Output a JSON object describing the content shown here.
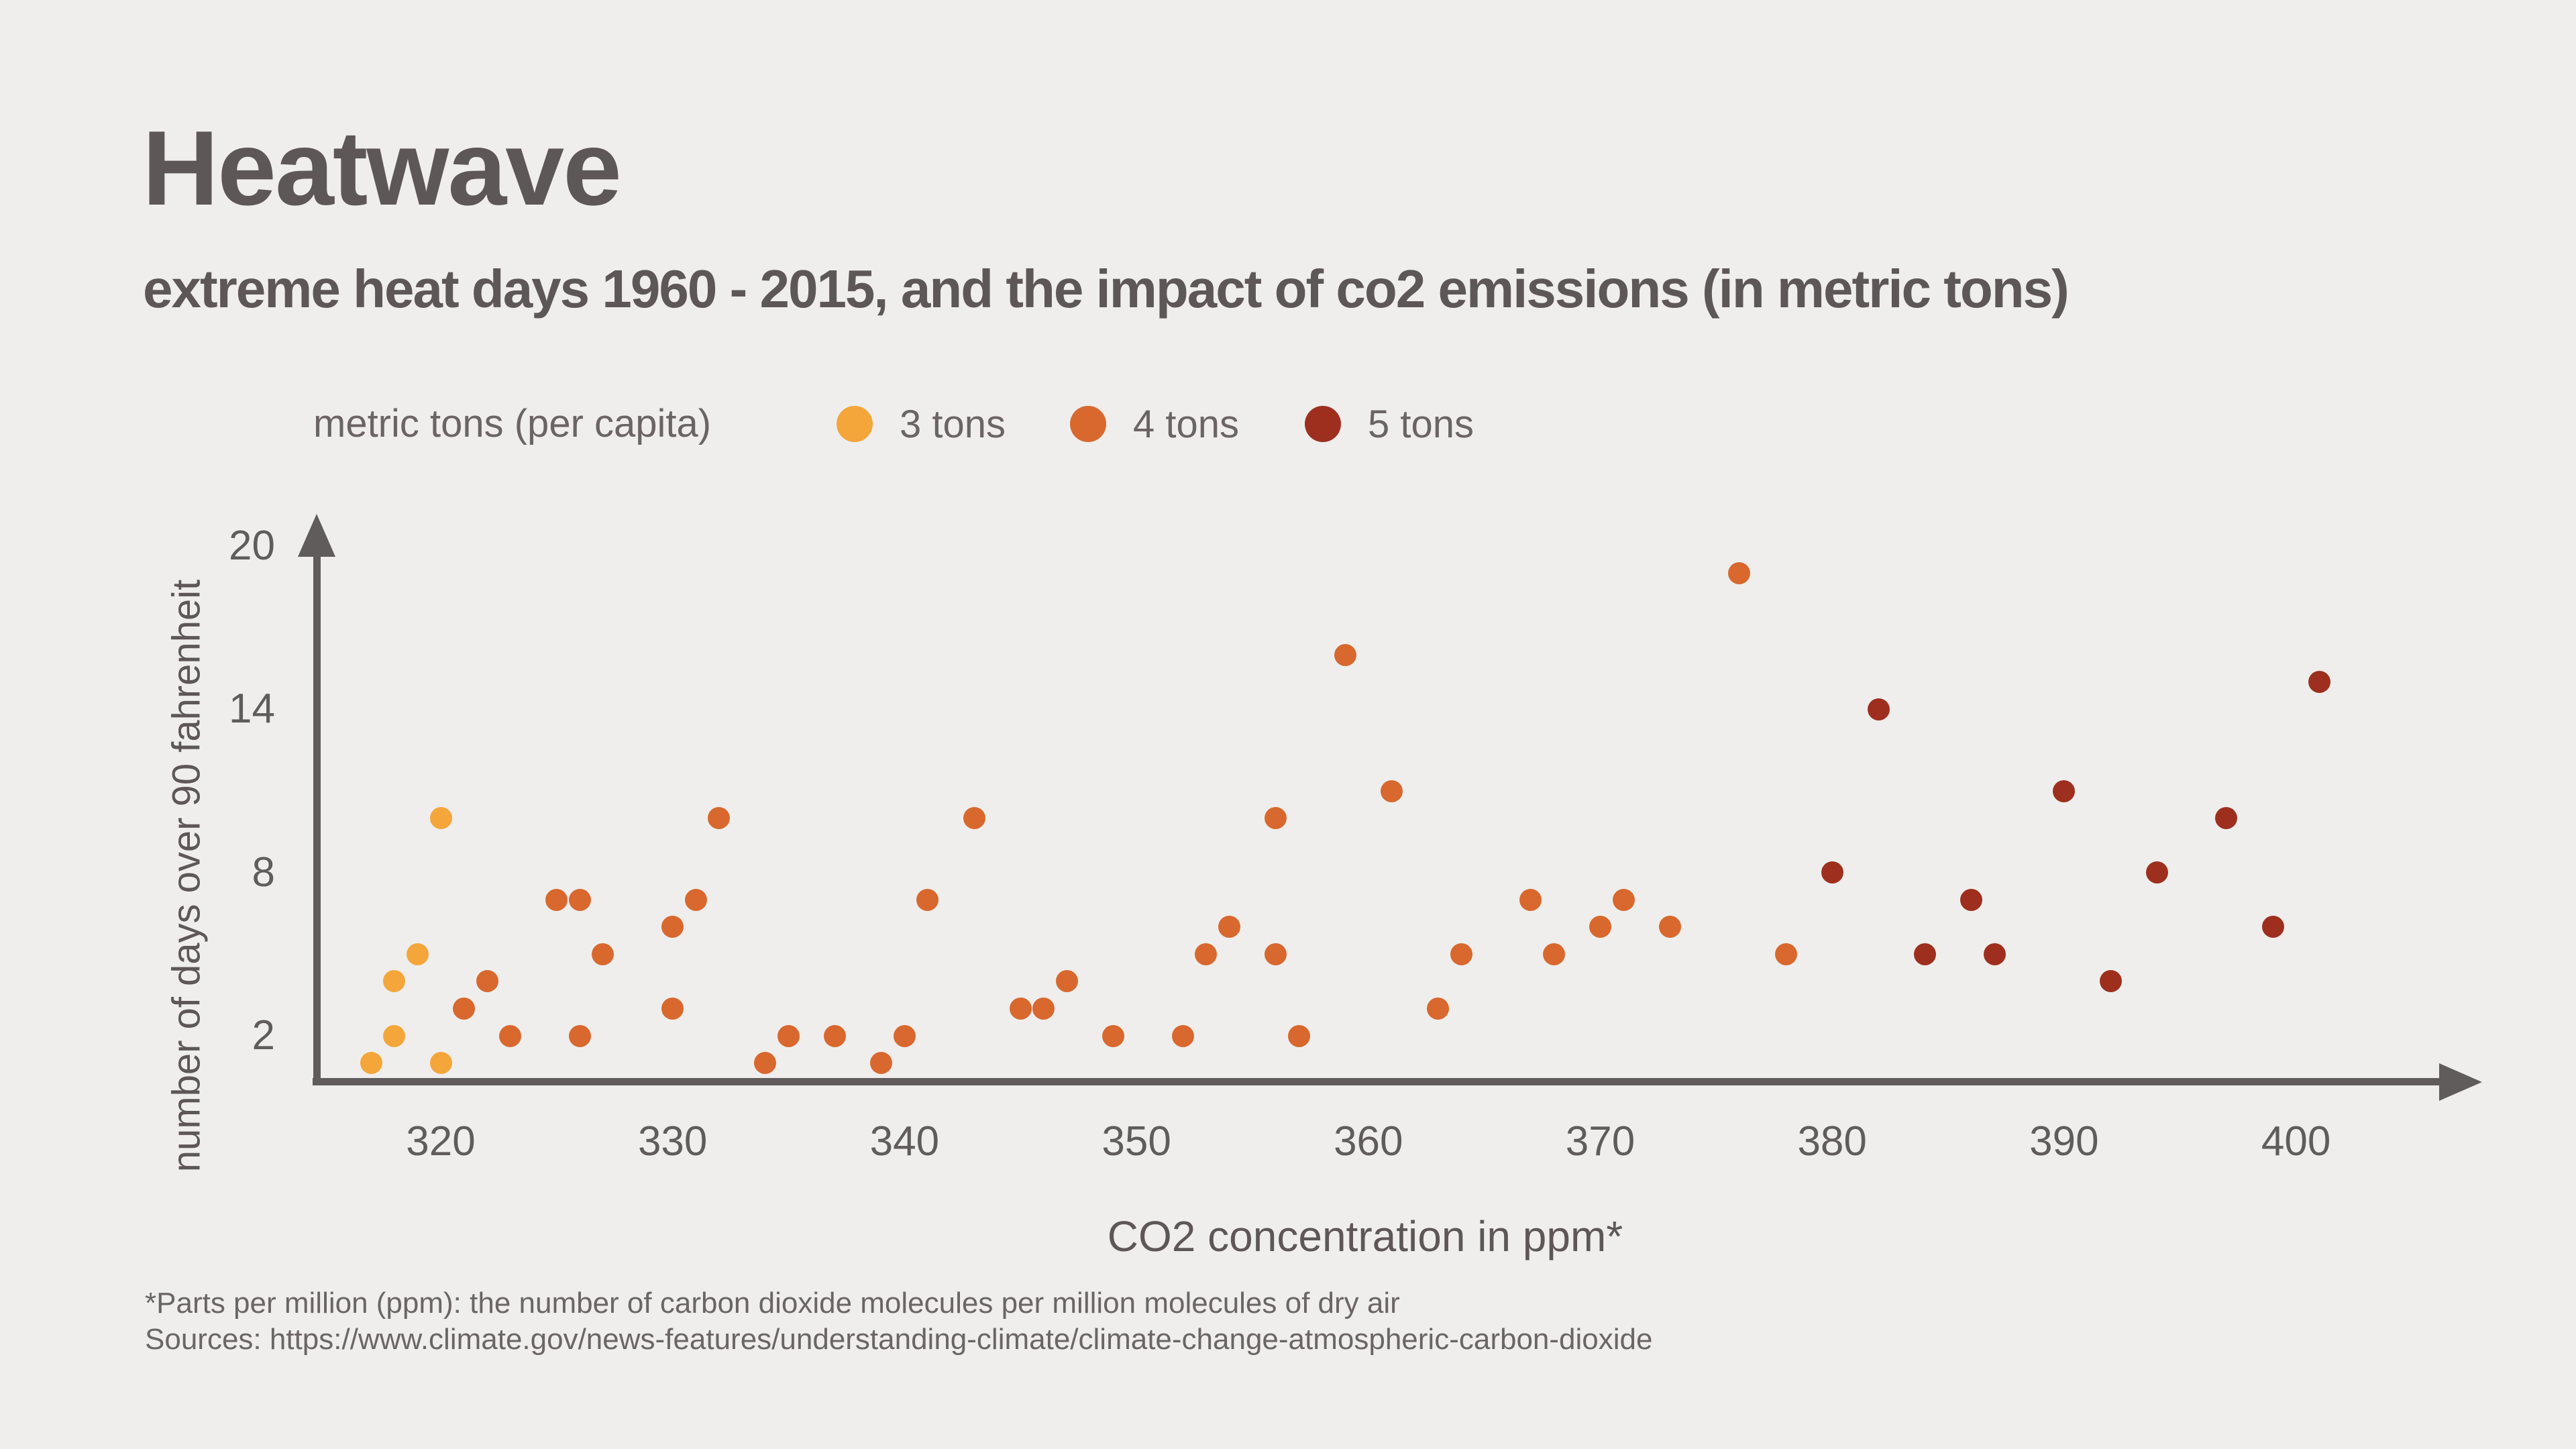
{
  "header": {
    "title": "Heatwave",
    "subtitle": "extreme heat days 1960 - 2015, and the impact of co2 emissions (in metric tons)"
  },
  "legend": {
    "label": "metric tons (per capita)",
    "items": [
      {
        "label": "3 tons",
        "color": "#F4A63B"
      },
      {
        "label": "4 tons",
        "color": "#D8682E"
      },
      {
        "label": "5 tons",
        "color": "#9E2F1E"
      }
    ]
  },
  "chart_data": {
    "type": "scatter",
    "title": "Heatwave",
    "xlabel": "CO2 concentration in ppm*",
    "ylabel": "number of days over 90 fahrenheit",
    "x_ticks": [
      320,
      330,
      340,
      350,
      360,
      370,
      380,
      390,
      400
    ],
    "y_ticks": [
      2,
      8,
      14,
      20
    ],
    "xlim": [
      314.5,
      408
    ],
    "ylim": [
      0,
      21
    ],
    "grid": false,
    "legend_position": "top",
    "series": [
      {
        "name": "3 tons",
        "color": "#F4A63B",
        "points": [
          [
            317,
            1
          ],
          [
            318,
            2
          ],
          [
            318,
            4
          ],
          [
            319,
            5
          ],
          [
            320,
            1
          ],
          [
            320,
            10
          ]
        ]
      },
      {
        "name": "4 tons",
        "color": "#D8682E",
        "points": [
          [
            321,
            3
          ],
          [
            322,
            4
          ],
          [
            323,
            2
          ],
          [
            325,
            7
          ],
          [
            326,
            2
          ],
          [
            326,
            7
          ],
          [
            327,
            5
          ],
          [
            330,
            3
          ],
          [
            330,
            6
          ],
          [
            331,
            7
          ],
          [
            332,
            10
          ],
          [
            334,
            1
          ],
          [
            335,
            2
          ],
          [
            337,
            2
          ],
          [
            339,
            1
          ],
          [
            340,
            2
          ],
          [
            341,
            7
          ],
          [
            343,
            10
          ],
          [
            345,
            3
          ],
          [
            346,
            3
          ],
          [
            347,
            4
          ],
          [
            349,
            2
          ],
          [
            352,
            2
          ],
          [
            353,
            5
          ],
          [
            354,
            6
          ],
          [
            356,
            5
          ],
          [
            356,
            10
          ],
          [
            357,
            2
          ],
          [
            359,
            16
          ],
          [
            361,
            11
          ],
          [
            363,
            3
          ],
          [
            364,
            5
          ],
          [
            367,
            7
          ],
          [
            368,
            5
          ],
          [
            370,
            6
          ],
          [
            371,
            7
          ],
          [
            373,
            6
          ],
          [
            376,
            19
          ],
          [
            378,
            5
          ]
        ]
      },
      {
        "name": "5 tons",
        "color": "#9E2F1E",
        "points": [
          [
            380,
            8
          ],
          [
            382,
            14
          ],
          [
            384,
            5
          ],
          [
            386,
            7
          ],
          [
            387,
            5
          ],
          [
            390,
            11
          ],
          [
            392,
            4
          ],
          [
            394,
            8
          ],
          [
            397,
            10
          ],
          [
            399,
            6
          ],
          [
            401,
            15
          ]
        ]
      }
    ]
  },
  "footer": {
    "note": "*Parts per million (ppm): the number of carbon dioxide molecules per million molecules of dry air",
    "sources": "Sources: https://www.climate.gov/news-features/understanding-climate/climate-change-atmospheric-carbon-dioxide"
  },
  "colors": {
    "background": "#EFEEEC",
    "heading": "#5E5757",
    "muted_text": "#6B6464",
    "axis": "#615C5C"
  }
}
